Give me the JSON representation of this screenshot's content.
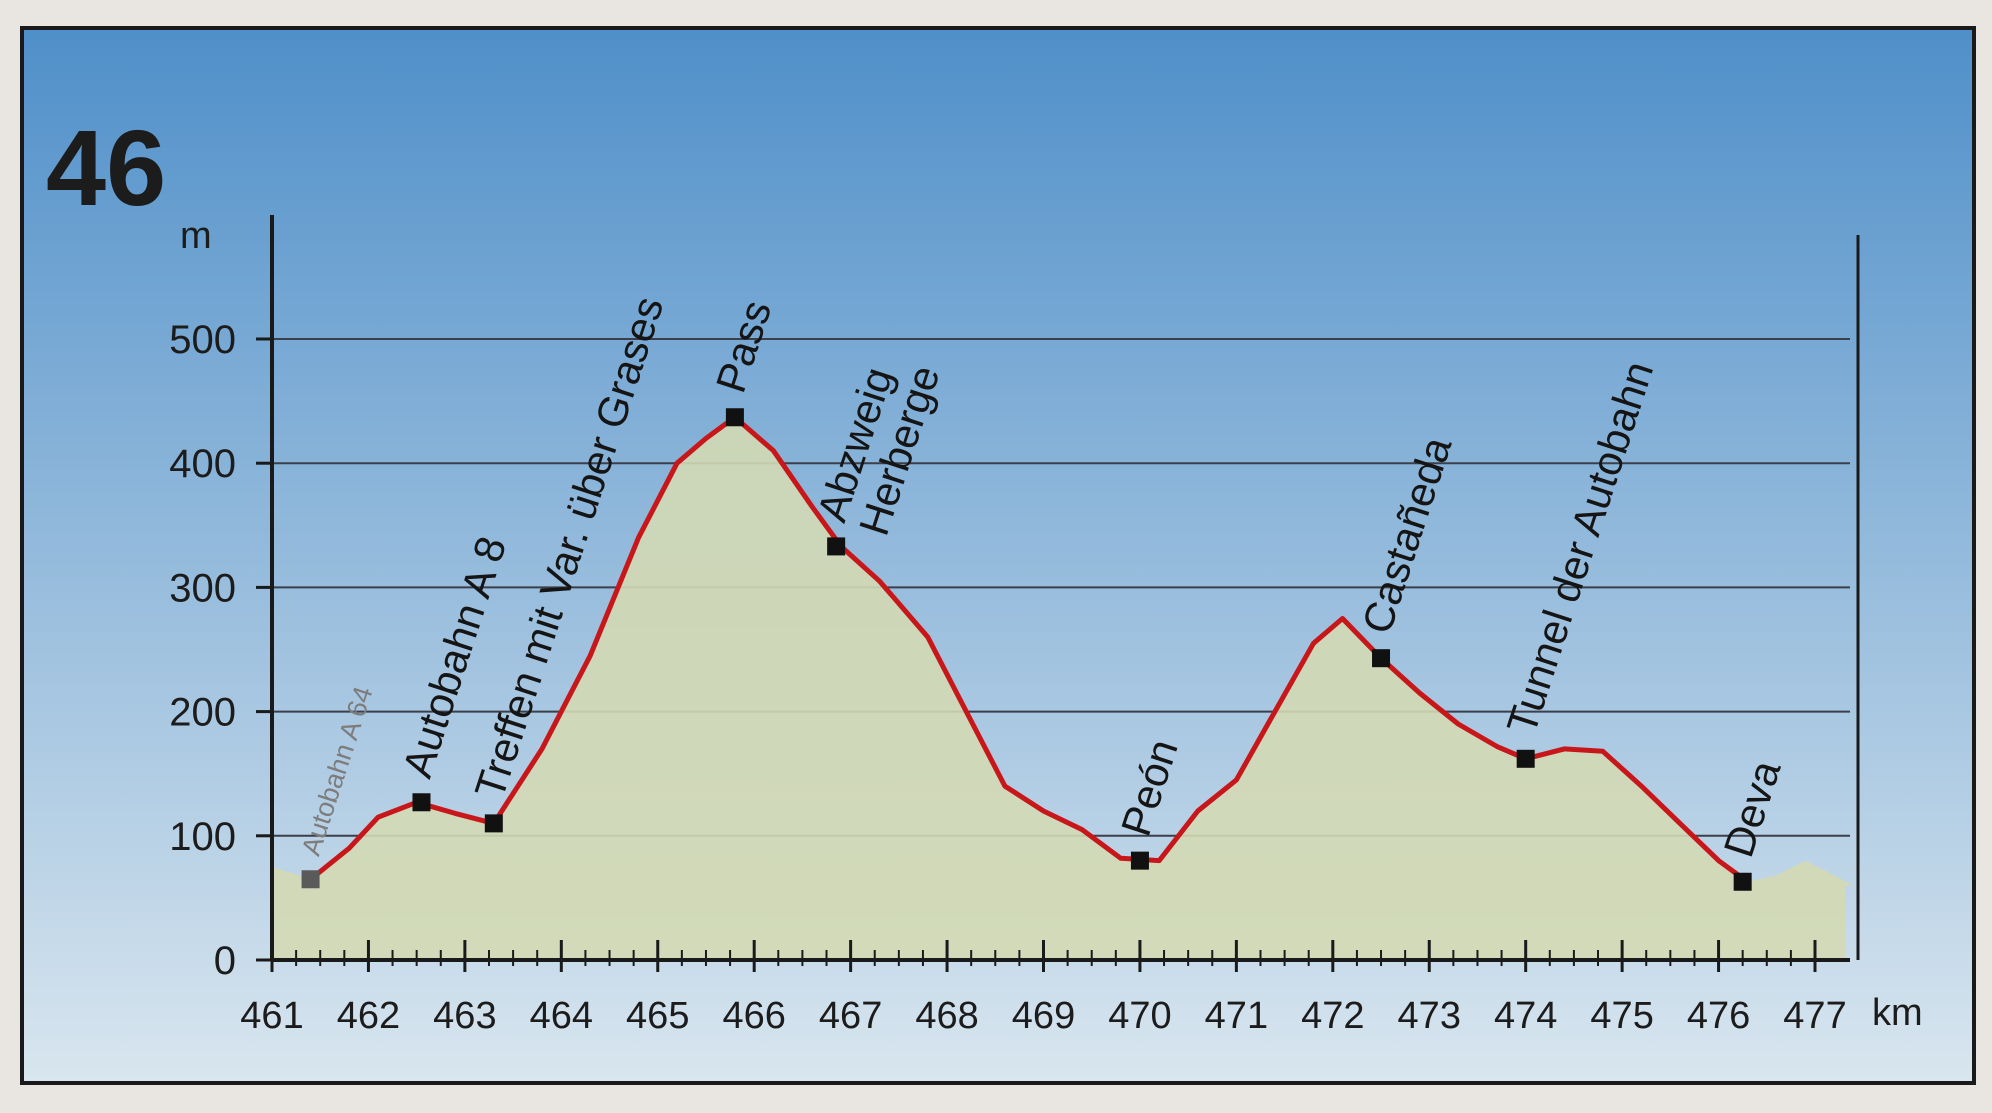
{
  "stage_number": "46",
  "colors": {
    "sky_top": "#4f8fc9",
    "sky_bottom": "#d9e6ef",
    "terrain_fill": "#d3d9b4",
    "profile_line": "#c8171b",
    "grid": "#3a3f4a",
    "frame": "#1a1a1a",
    "muted_label": "#7d7d7d"
  },
  "chart_data": {
    "type": "area",
    "title": "",
    "xlabel": "km",
    "ylabel": "m",
    "xlim": [
      461,
      477.5
    ],
    "ylim": [
      0,
      500
    ],
    "grid": true,
    "xticks": [
      461,
      462,
      463,
      464,
      465,
      466,
      467,
      468,
      469,
      470,
      471,
      472,
      473,
      474,
      475,
      476,
      477
    ],
    "yticks": [
      0,
      100,
      200,
      300,
      400,
      500
    ],
    "xtick_labels": [
      "461",
      "462",
      "463",
      "464",
      "465",
      "466",
      "467",
      "468",
      "469",
      "470",
      "471",
      "472",
      "473",
      "474",
      "475",
      "476",
      "477"
    ],
    "ytick_labels": [
      "0",
      "100",
      "200",
      "300",
      "400",
      "500"
    ],
    "terrain": {
      "x": [
        461.0,
        461.4,
        461.8,
        462.1,
        462.5,
        462.9,
        463.3,
        463.8,
        464.3,
        464.8,
        465.2,
        465.5,
        465.8,
        466.2,
        466.6,
        466.9,
        467.3,
        467.8,
        468.2,
        468.6,
        469.0,
        469.4,
        469.8,
        470.2,
        470.6,
        471.0,
        471.4,
        471.8,
        472.1,
        472.5,
        472.9,
        473.3,
        473.7,
        474.0,
        474.4,
        474.8,
        475.2,
        475.6,
        476.0,
        476.3,
        476.6,
        476.9,
        477.2,
        477.4
      ],
      "y": [
        75,
        65,
        90,
        115,
        127,
        118,
        110,
        170,
        245,
        340,
        400,
        420,
        437,
        410,
        365,
        333,
        305,
        260,
        200,
        140,
        120,
        105,
        82,
        80,
        120,
        145,
        200,
        255,
        275,
        243,
        215,
        190,
        172,
        162,
        170,
        168,
        140,
        110,
        80,
        63,
        68,
        80,
        68,
        60
      ]
    },
    "series": [
      {
        "x": [
          461.4,
          461.8,
          462.1,
          462.5,
          462.9,
          463.3,
          463.8,
          464.3,
          464.8,
          465.2,
          465.5,
          465.8,
          466.2,
          466.6,
          466.9,
          467.3,
          467.8,
          468.2,
          468.6,
          469.0,
          469.4,
          469.8,
          470.2,
          470.6,
          471.0,
          471.4,
          471.8,
          472.1,
          472.5,
          472.9,
          473.3,
          473.7,
          474.0,
          474.4,
          474.8,
          475.2,
          475.6,
          476.0,
          476.3
        ],
        "y": [
          65,
          90,
          115,
          127,
          118,
          110,
          170,
          245,
          340,
          400,
          420,
          437,
          410,
          365,
          333,
          305,
          260,
          200,
          140,
          120,
          105,
          82,
          80,
          120,
          145,
          200,
          255,
          275,
          243,
          215,
          190,
          172,
          162,
          170,
          168,
          140,
          110,
          80,
          63
        ]
      }
    ],
    "waypoints": [
      {
        "label": "Autobahn A 64",
        "x": 461.4,
        "y": 65,
        "muted": true
      },
      {
        "label": "Autobahn A 8",
        "x": 462.55,
        "y": 127
      },
      {
        "label": "Treffen mit Var. über Grases",
        "x": 463.3,
        "y": 110
      },
      {
        "label": "Pass",
        "x": 465.8,
        "y": 437
      },
      {
        "label": "Abzweig",
        "label2": "Herberge",
        "x": 466.85,
        "y": 333
      },
      {
        "label": "Peón",
        "x": 470.0,
        "y": 80
      },
      {
        "label": "Castañeda",
        "x": 472.5,
        "y": 243
      },
      {
        "label": "Tunnel der Autobahn",
        "x": 474.0,
        "y": 162
      },
      {
        "label": "Deva",
        "x": 476.25,
        "y": 63
      }
    ]
  }
}
